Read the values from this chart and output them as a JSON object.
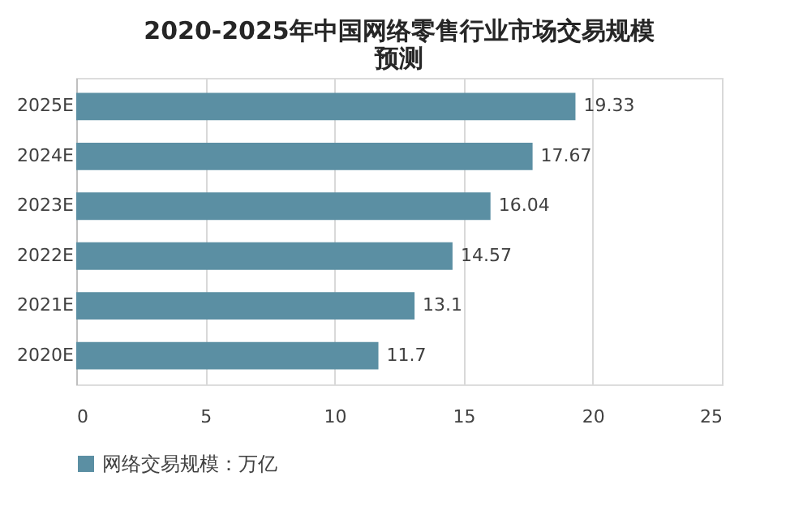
{
  "chart_data": {
    "type": "bar",
    "orientation": "horizontal",
    "title": "2020-2025年中国网络零售行业市场交易规模预测",
    "categories": [
      "2025E",
      "2024E",
      "2023E",
      "2022E",
      "2021E",
      "2020E"
    ],
    "series": [
      {
        "name": "网络交易规模：万亿",
        "color": "#5b8fa3",
        "values": [
          19.33,
          17.67,
          16.04,
          14.57,
          13.1,
          11.7
        ]
      }
    ],
    "data_labels": true,
    "xlim": [
      0,
      25
    ],
    "xticks": [
      0,
      5,
      10,
      15,
      20,
      25
    ],
    "grid": "x",
    "legend": "bottom"
  }
}
